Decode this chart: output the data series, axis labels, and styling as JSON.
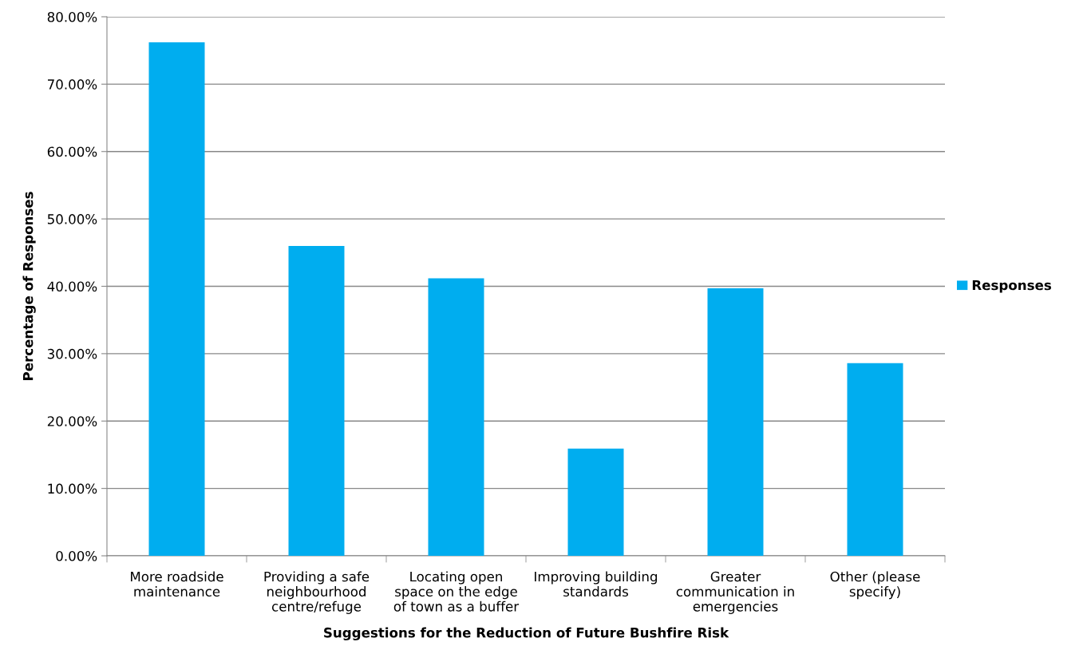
{
  "chart_data": {
    "type": "bar",
    "xlabel": "Suggestions for the Reduction of Future Bushfire Risk",
    "ylabel": "Percentage of Responses",
    "categories": [
      "More roadside\nmaintenance",
      "Providing a safe\nneighbourhood\ncentre/refuge",
      "Locating open\nspace on the edge\nof town as a buffer",
      "Improving building\nstandards",
      "Greater\ncommunication in\nemergencies",
      "Other (please\nspecify)"
    ],
    "series": [
      {
        "name": "Responses",
        "color": "#00adef",
        "values": [
          76.2,
          46.0,
          41.2,
          15.9,
          39.7,
          28.6
        ]
      }
    ],
    "ylim": [
      0,
      80
    ],
    "yticks": [
      {
        "value": 0,
        "label": "0.00%"
      },
      {
        "value": 10,
        "label": "10.00%"
      },
      {
        "value": 20,
        "label": "20.00%"
      },
      {
        "value": 30,
        "label": "30.00%"
      },
      {
        "value": 40,
        "label": "40.00%"
      },
      {
        "value": 50,
        "label": "50.00%"
      },
      {
        "value": 60,
        "label": "60.00%"
      },
      {
        "value": 70,
        "label": "70.00%"
      },
      {
        "value": 80,
        "label": "80.00%"
      }
    ],
    "grid": "y",
    "legend": "right"
  }
}
